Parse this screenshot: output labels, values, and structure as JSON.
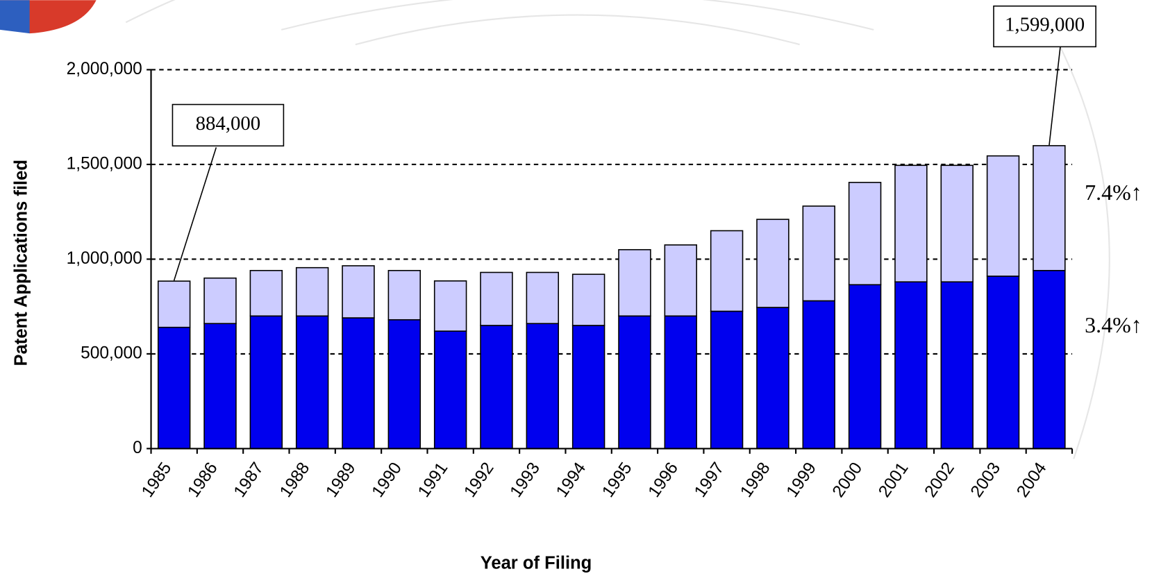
{
  "chart_data": {
    "type": "stacked-bar",
    "x_label": "Year of Filing",
    "y_label": "Patent Applications filed",
    "categories": [
      "1985",
      "1986",
      "1987",
      "1988",
      "1989",
      "1990",
      "1991",
      "1992",
      "1993",
      "1994",
      "1995",
      "1996",
      "1997",
      "1998",
      "1999",
      "2000",
      "2001",
      "2002",
      "2003",
      "2004"
    ],
    "series": [
      {
        "color": "#0000ee",
        "values": [
          640000,
          660000,
          700000,
          700000,
          690000,
          680000,
          620000,
          650000,
          660000,
          650000,
          700000,
          700000,
          725000,
          745000,
          780000,
          865000,
          880000,
          880000,
          910000,
          940000
        ]
      },
      {
        "color": "#ccccff",
        "values": [
          244000,
          240000,
          240000,
          255000,
          275000,
          260000,
          265000,
          280000,
          270000,
          270000,
          350000,
          375000,
          425000,
          465000,
          500000,
          540000,
          615000,
          615000,
          635000,
          659000
        ]
      }
    ],
    "ylim": [
      0,
      2000000
    ],
    "yticks": [
      0,
      {
        "value": 500000,
        "label": "500,000"
      },
      {
        "value": 1000000,
        "label": "1,000,000"
      },
      {
        "value": 1500000,
        "label": "1,500,000"
      },
      {
        "value": 2000000,
        "label": "2,000,000"
      }
    ],
    "grid": true,
    "annotations": [
      "884,000",
      "1,599,000",
      "7.4%↑",
      "3.4%↑"
    ]
  }
}
